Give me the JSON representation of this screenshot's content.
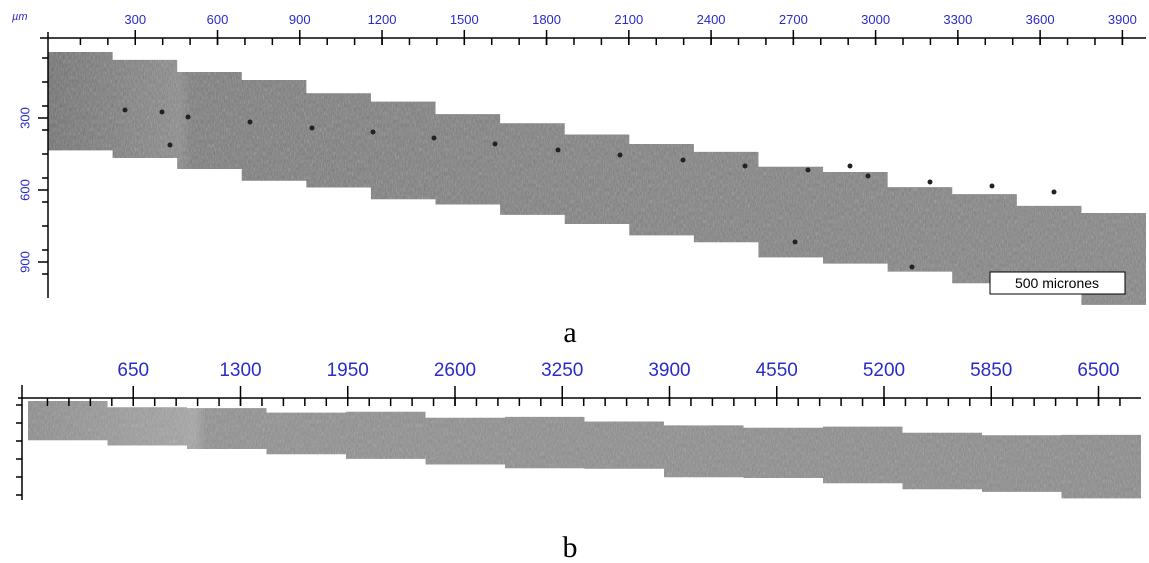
{
  "panels": [
    {
      "unit": "µm",
      "x_labels": [
        300,
        600,
        900,
        1200,
        1500,
        1800,
        2100,
        2400,
        2700,
        3000,
        3300,
        3600,
        3900
      ],
      "y_labels": [
        300,
        600,
        900
      ],
      "scale_bar": "500 micrones",
      "caption": "a"
    },
    {
      "x_labels": [
        650,
        1300,
        1950,
        2600,
        3250,
        3900,
        4550,
        5200,
        5850,
        6500
      ],
      "caption": "b"
    }
  ]
}
